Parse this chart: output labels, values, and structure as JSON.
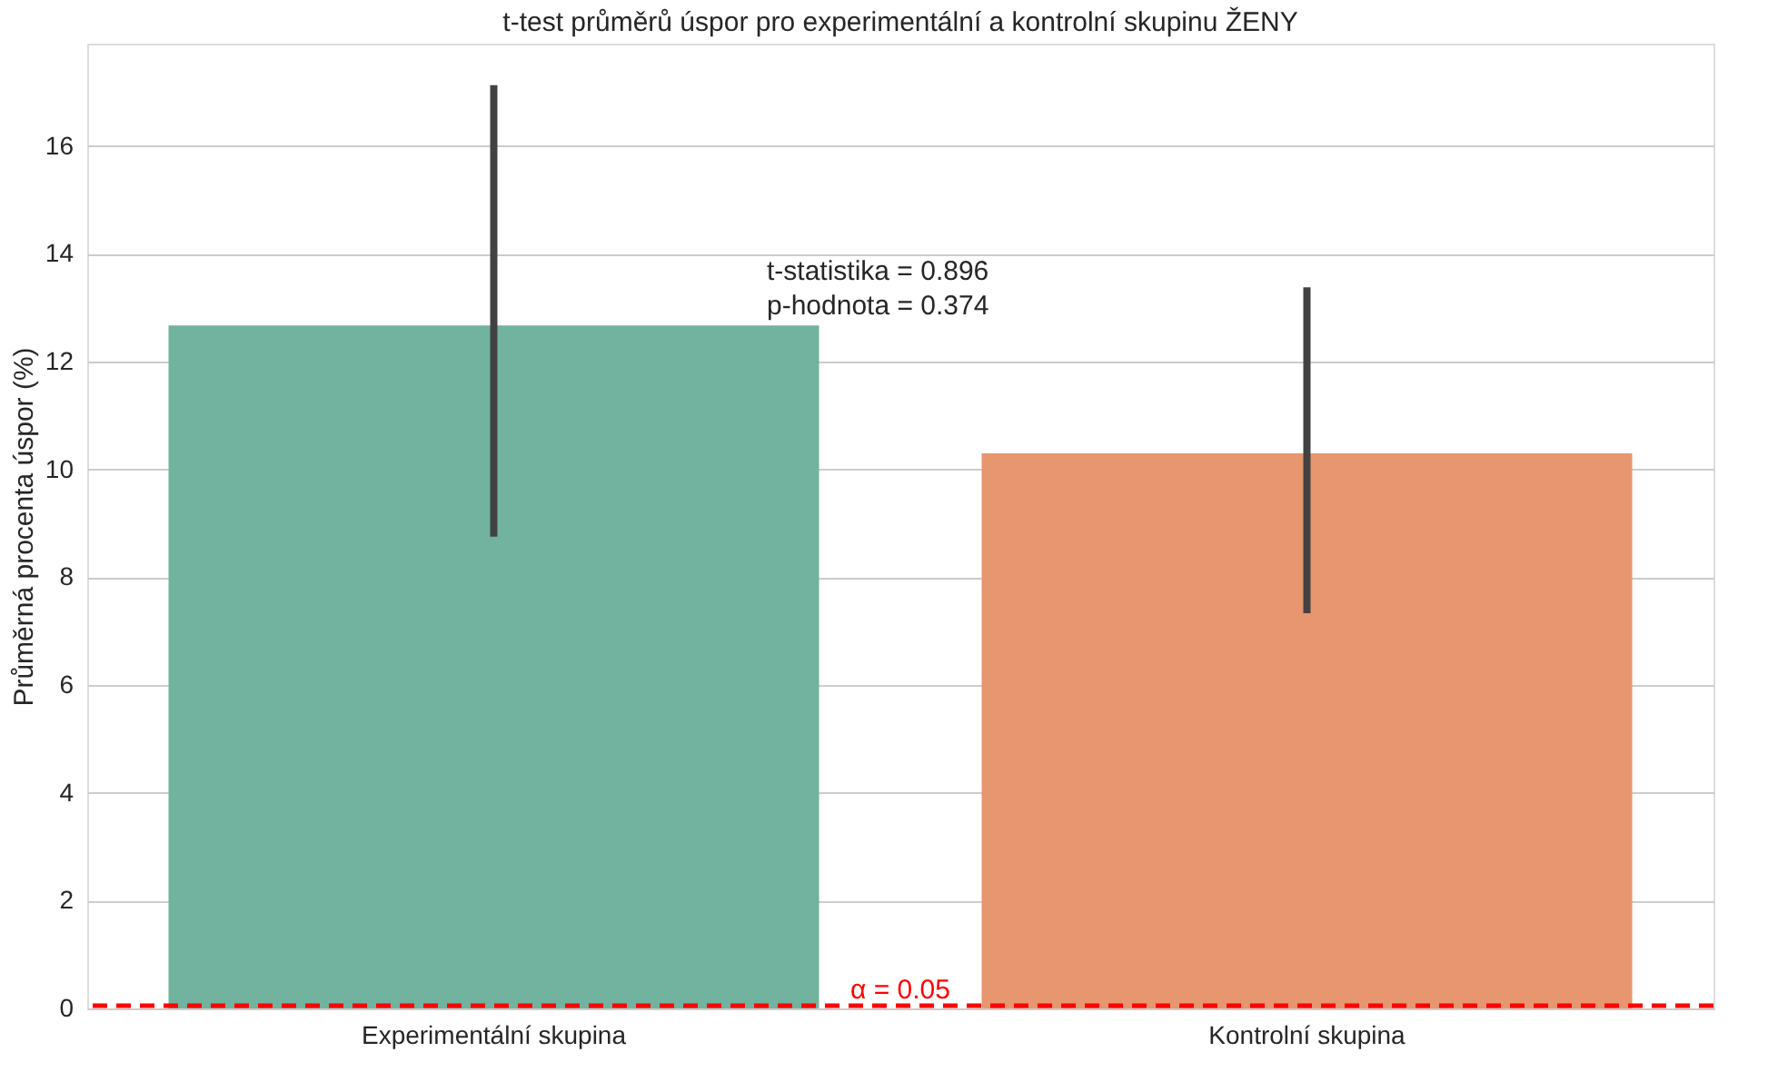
{
  "chart_data": {
    "type": "bar",
    "title": "t-test průměrů úspor pro experimentální a kontrolní skupinu ŽENY",
    "ylabel": "Průměrná procenta úspor (%)",
    "categories": [
      "Experimentální skupina",
      "Kontrolní skupina"
    ],
    "values": [
      12.67,
      10.3
    ],
    "colors": [
      "#72b3a0",
      "#e8966f"
    ],
    "errors": [
      [
        8.75,
        17.13
      ],
      [
        7.33,
        13.38
      ]
    ],
    "ylim": [
      0,
      17.9
    ],
    "yticks": [
      0,
      2,
      4,
      6,
      8,
      10,
      12,
      14,
      16
    ],
    "grid": "y",
    "ref_lines": [
      {
        "axis": "y",
        "value": 0.05,
        "label": "α = 0.05",
        "color": "#ff0000",
        "line_style": "dashed"
      }
    ],
    "annotations": [
      "t-statistika = 0.896",
      "p-hodnota = 0.374"
    ]
  }
}
